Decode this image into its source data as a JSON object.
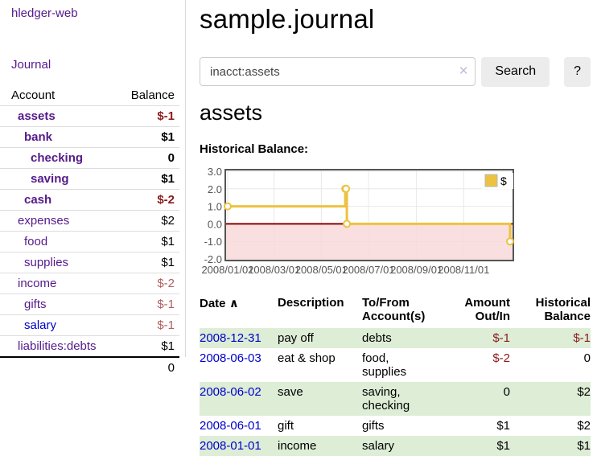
{
  "app": {
    "title": "hledger-web"
  },
  "sidebar": {
    "journal_link": "Journal",
    "table": {
      "account_header": "Account",
      "balance_header": "Balance",
      "rows": [
        {
          "name": "assets",
          "balance": "$-1"
        },
        {
          "name": "bank",
          "balance": "$1"
        },
        {
          "name": "checking",
          "balance": "0"
        },
        {
          "name": "saving",
          "balance": "$1"
        },
        {
          "name": "cash",
          "balance": "$-2"
        },
        {
          "name": "expenses",
          "balance": "$2"
        },
        {
          "name": "food",
          "balance": "$1"
        },
        {
          "name": "supplies",
          "balance": "$1"
        },
        {
          "name": "income",
          "balance": "$-2"
        },
        {
          "name": "gifts",
          "balance": "$-1"
        },
        {
          "name": "salary",
          "balance": "$-1"
        },
        {
          "name": "liabilities:debts",
          "balance": "$1"
        }
      ],
      "total": "0"
    }
  },
  "main": {
    "title": "sample.journal",
    "search": {
      "value": "inacct:assets",
      "clear_icon": "✕",
      "search_button": "Search",
      "help_button": "?"
    },
    "account_heading": "assets",
    "chart_heading": "Historical Balance:"
  },
  "chart_data": {
    "type": "line",
    "title": "Historical Balance",
    "step": true,
    "series": [
      {
        "name": "$",
        "color": "#edc240",
        "points": [
          [
            "2008-01-01",
            1
          ],
          [
            "2008-06-01",
            2
          ],
          [
            "2008-06-02",
            2
          ],
          [
            "2008-06-03",
            0
          ],
          [
            "2008-12-31",
            -1
          ]
        ]
      }
    ],
    "ylim": [
      -2,
      3
    ],
    "yticks": [
      "3.0",
      "2.0",
      "1.0",
      "0.0",
      "-1.0",
      "-2.0"
    ],
    "xticks": [
      "2008/01/01",
      "2008/03/01",
      "2008/05/01",
      "2008/07/01",
      "2008/09/01",
      "2008/11/01"
    ],
    "grid": true,
    "negative_region_color": "#f8d7d7",
    "zero_line_color": "#8b0000",
    "legend": {
      "label": "$",
      "position": "top-right"
    }
  },
  "register": {
    "sort_indicator": "∧",
    "columns": {
      "date": "Date",
      "description": "Description",
      "accounts": "To/From Account(s)",
      "amount": "Amount Out/In",
      "balance": "Historical Balance"
    },
    "rows": [
      {
        "date": "2008-12-31",
        "description": "pay off",
        "accounts": "debts",
        "amount": "$-1",
        "balance": "$-1"
      },
      {
        "date": "2008-06-03",
        "description": "eat & shop",
        "accounts": "food, supplies",
        "amount": "$-2",
        "balance": "0"
      },
      {
        "date": "2008-06-02",
        "description": "save",
        "accounts": "saving, checking",
        "amount": "0",
        "balance": "$2"
      },
      {
        "date": "2008-06-01",
        "description": "gift",
        "accounts": "gifts",
        "amount": "$1",
        "balance": "$2"
      },
      {
        "date": "2008-01-01",
        "description": "income",
        "accounts": "salary",
        "amount": "$1",
        "balance": "$1"
      }
    ]
  },
  "colors": {
    "link_purple": "#551a8b",
    "link_blue": "#0000cc",
    "negative_strong": "#8b1a1a",
    "negative_muted": "#b25e5e",
    "row_green": "#ddedd6",
    "chart_line": "#edc240",
    "chart_zero_line": "#8b0000",
    "chart_negative_fill": "#f8d7d7",
    "button_bg": "#ececec"
  }
}
